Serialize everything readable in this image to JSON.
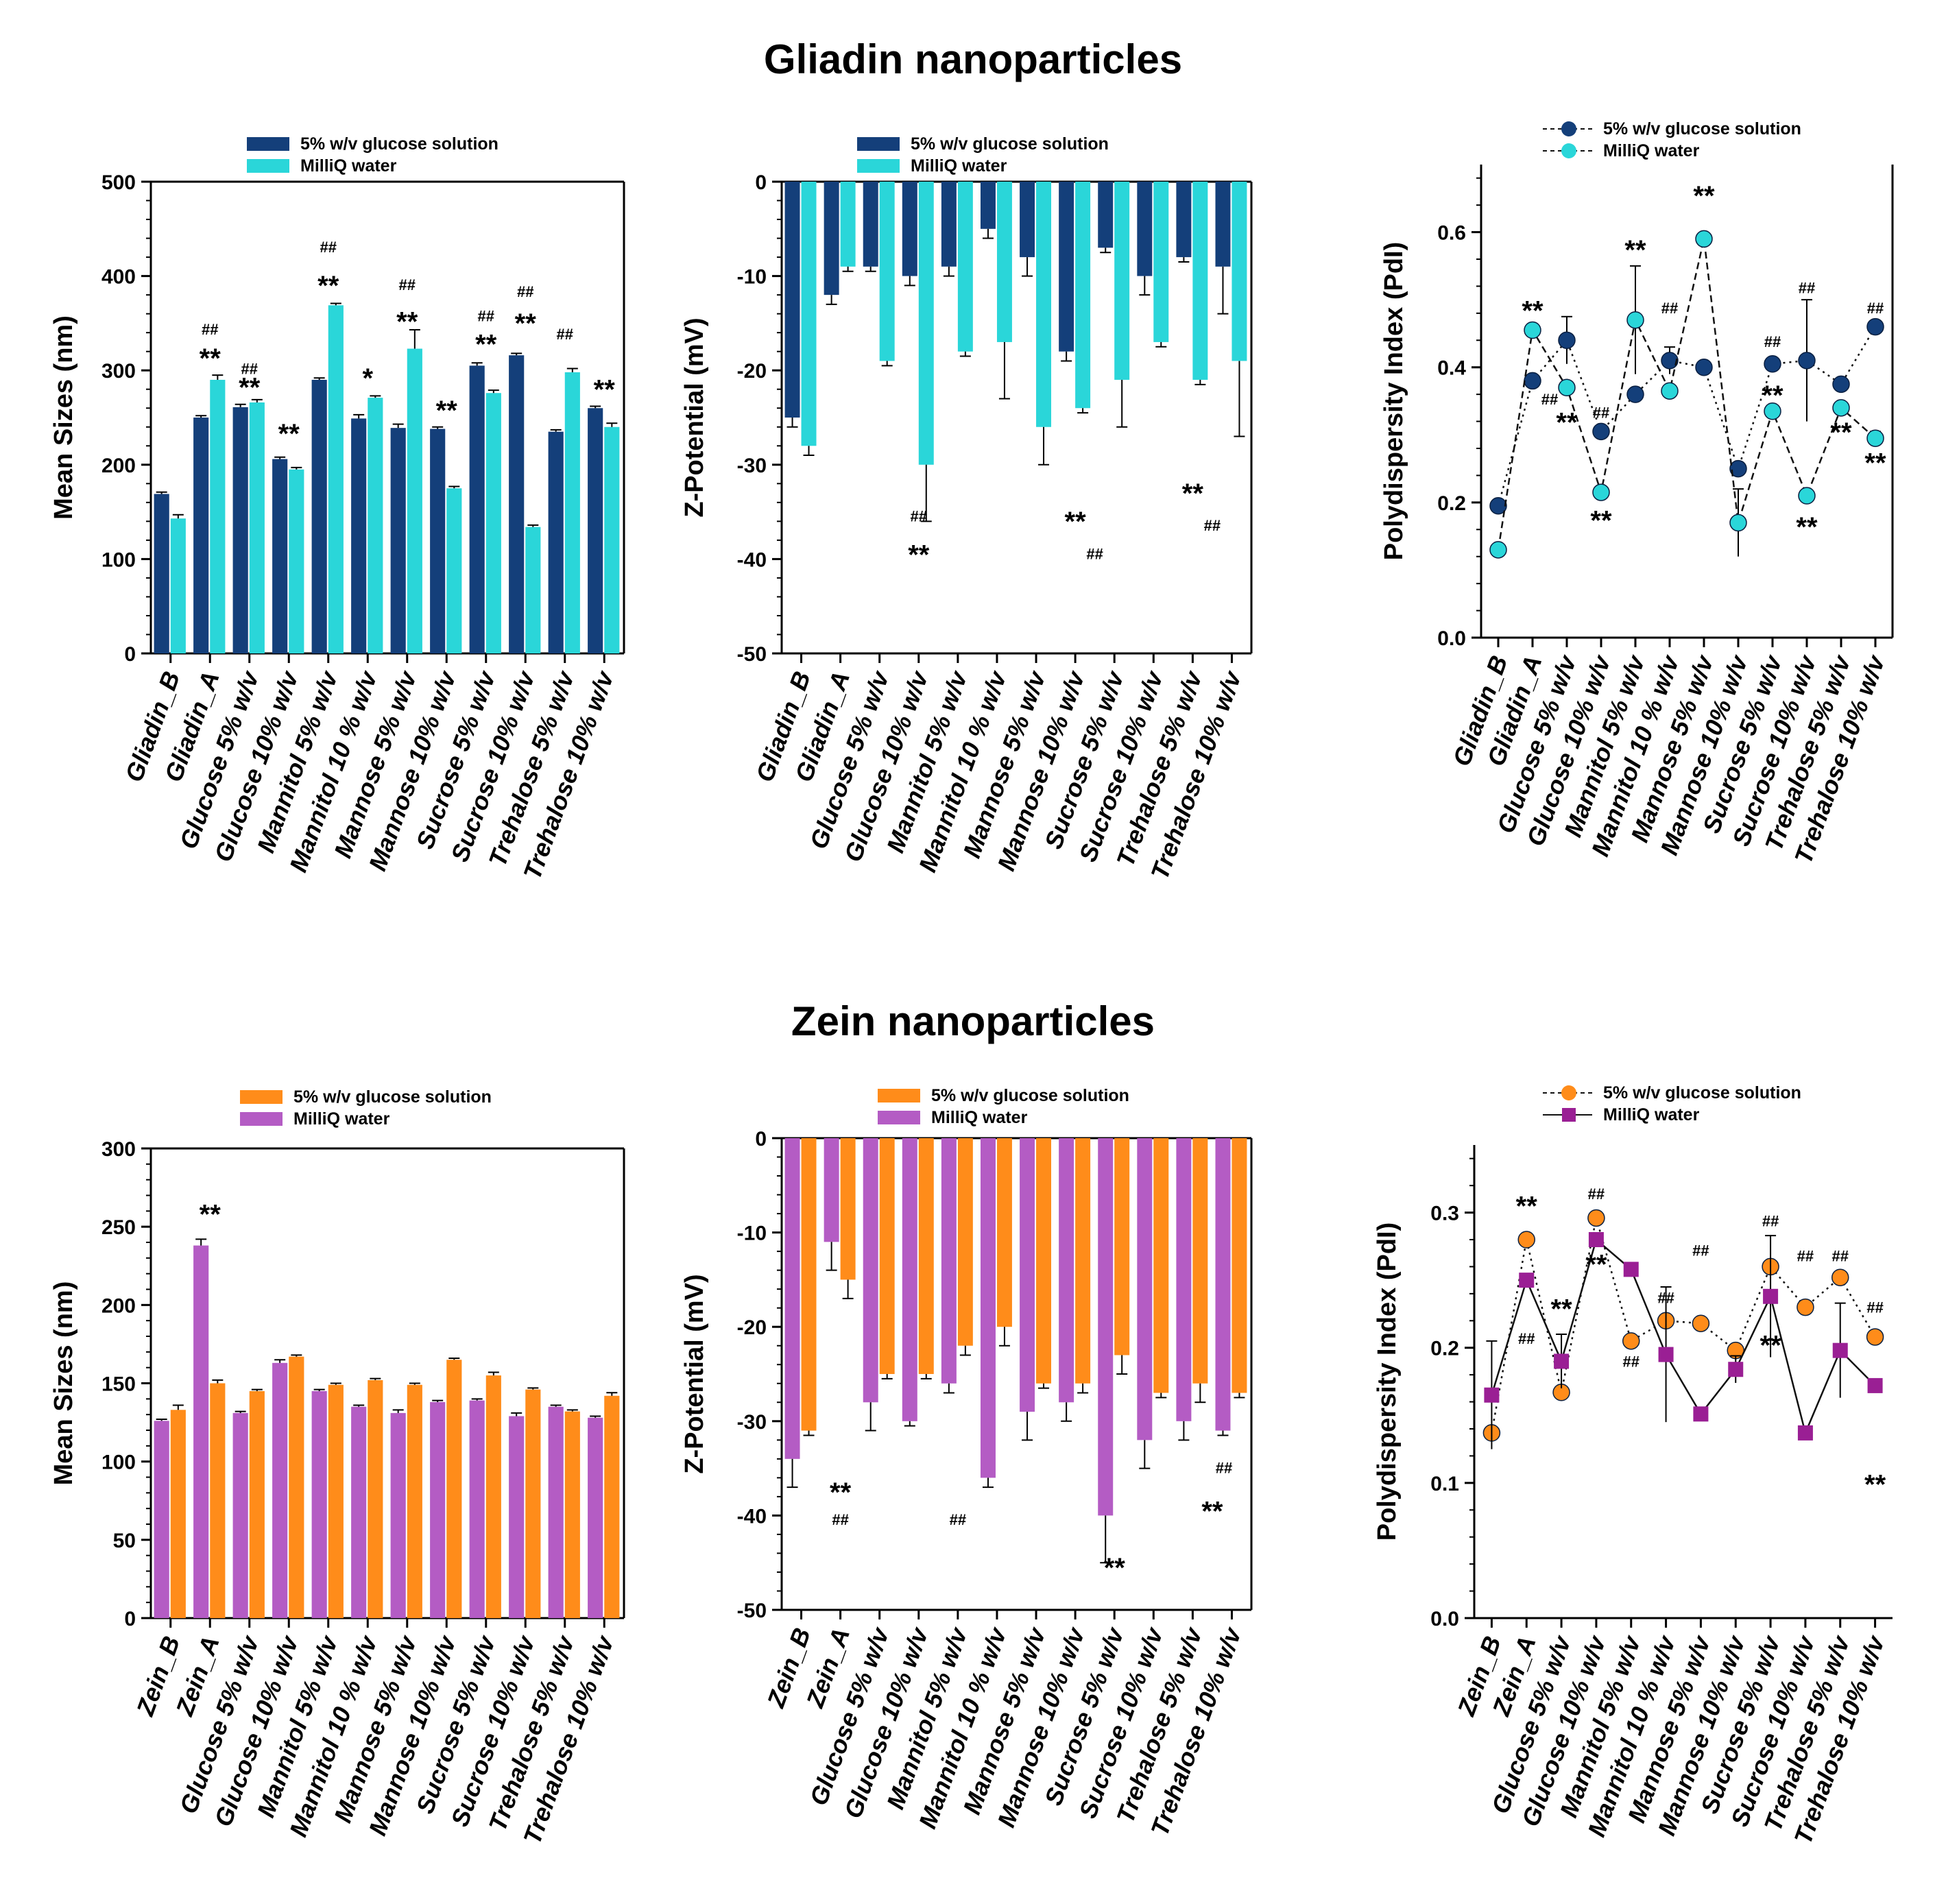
{
  "titles": {
    "top": "Gliadin nanoparticles",
    "bottom": "Zein nanoparticles"
  },
  "colors": {
    "glucose_blue": "#143f7a",
    "water_cyan": "#2ad6d9",
    "glucose_orange": "#ff8c1a",
    "water_purple": "#b45cc4",
    "purple_marker": "#9a1f94"
  },
  "chart_data": [
    {
      "id": "gliadin-size",
      "type": "bar",
      "ylabel": "Mean Sizes (nm)",
      "ylim": [
        0,
        500
      ],
      "yticks": [
        0,
        100,
        200,
        300,
        400,
        500
      ],
      "categories": [
        "Gliadin_B",
        "Gliadin_A",
        "Glucose 5% w/v",
        "Glucose 10% w/v",
        "Mannitol 5% w/v",
        "Mannitol 10 % w/v",
        "Mannose 5% w/v",
        "Mannose 10% w/v",
        "Sucrose 5% w/v",
        "Sucrose 10% w/v",
        "Trehalose 5% w/v",
        "Trehalose 10% w/v"
      ],
      "series": [
        {
          "name": "5% w/v glucose solution",
          "color": "#143f7a",
          "values": [
            169,
            250,
            261,
            206,
            290,
            249,
            239,
            238,
            305,
            316,
            235,
            260
          ],
          "errors": [
            2,
            2,
            3,
            2,
            2,
            4,
            4,
            2,
            3,
            2,
            2,
            2
          ]
        },
        {
          "name": "MilliQ water",
          "color": "#2ad6d9",
          "values": [
            143,
            290,
            266,
            195,
            369,
            271,
            323,
            175,
            276,
            134,
            298,
            240
          ],
          "errors": [
            4,
            5,
            3,
            2,
            2,
            2,
            20,
            2,
            3,
            2,
            4,
            4
          ]
        }
      ],
      "annotations": [
        {
          "cat": 1,
          "value": 303,
          "text": "**",
          "kind": "star"
        },
        {
          "cat": 1,
          "value": 338,
          "text": "##",
          "kind": "hash"
        },
        {
          "cat": 2,
          "value": 272,
          "text": "**",
          "kind": "star"
        },
        {
          "cat": 2,
          "value": 296,
          "text": "##",
          "kind": "hash"
        },
        {
          "cat": 3,
          "value": 223,
          "text": "**",
          "kind": "star"
        },
        {
          "cat": 4,
          "value": 380,
          "text": "**",
          "kind": "star"
        },
        {
          "cat": 4,
          "value": 425,
          "text": "##",
          "kind": "hash"
        },
        {
          "cat": 5,
          "value": 282,
          "text": "*",
          "kind": "star"
        },
        {
          "cat": 6,
          "value": 342,
          "text": "**",
          "kind": "star"
        },
        {
          "cat": 6,
          "value": 385,
          "text": "##",
          "kind": "hash"
        },
        {
          "cat": 7,
          "value": 248,
          "text": "**",
          "kind": "star"
        },
        {
          "cat": 8,
          "value": 318,
          "text": "**",
          "kind": "star"
        },
        {
          "cat": 8,
          "value": 352,
          "text": "##",
          "kind": "hash"
        },
        {
          "cat": 9,
          "value": 340,
          "text": "**",
          "kind": "star"
        },
        {
          "cat": 9,
          "value": 378,
          "text": "##",
          "kind": "hash"
        },
        {
          "cat": 10,
          "value": 333,
          "text": "##",
          "kind": "hash"
        },
        {
          "cat": 11,
          "value": 270,
          "text": "**",
          "kind": "star"
        }
      ]
    },
    {
      "id": "gliadin-zeta",
      "type": "bar",
      "ylabel": "Z-Potential (mV)",
      "ylim": [
        -50,
        0
      ],
      "yticks": [
        0,
        -10,
        -20,
        -30,
        -40,
        -50
      ],
      "categories": [
        "Gliadin_B",
        "Gliadin_A",
        "Glucose 5% w/v",
        "Glucose 10% w/v",
        "Mannitol 5% w/v",
        "Mannitol 10 % w/v",
        "Mannose 5% w/v",
        "Mannose 10% w/v",
        "Sucrose 5% w/v",
        "Sucrose 10% w/v",
        "Trehalose 5% w/v",
        "Trehalose 10% w/v"
      ],
      "series": [
        {
          "name": "5% w/v glucose solution",
          "color": "#143f7a",
          "values": [
            -25,
            -12,
            -9,
            -10,
            -9,
            -5,
            -8,
            -18,
            -7,
            -10,
            -8,
            -9
          ],
          "errors": [
            1,
            1,
            0.5,
            1,
            1,
            1,
            2,
            1,
            0.5,
            2,
            0.5,
            5
          ]
        },
        {
          "name": "MilliQ water",
          "color": "#2ad6d9",
          "values": [
            -28,
            -9,
            -19,
            -30,
            -18,
            -17,
            -26,
            -24,
            -21,
            -17,
            -21,
            -19
          ],
          "errors": [
            1,
            0.5,
            0.5,
            6,
            0.5,
            6,
            4,
            0.5,
            5,
            0.5,
            0.5,
            8
          ]
        }
      ],
      "annotations": [
        {
          "cat": 3,
          "value": -36,
          "text": "##",
          "kind": "hash"
        },
        {
          "cat": 3,
          "value": -40.5,
          "text": "**",
          "kind": "star"
        },
        {
          "cat": 7,
          "value": -37,
          "text": "**",
          "kind": "star"
        },
        {
          "cat": 7.5,
          "value": -40,
          "text": "##",
          "kind": "hash"
        },
        {
          "cat": 10,
          "value": -34,
          "text": "**",
          "kind": "star"
        },
        {
          "cat": 10.5,
          "value": -37,
          "text": "##",
          "kind": "hash"
        }
      ]
    },
    {
      "id": "gliadin-pdi",
      "type": "line",
      "ylabel": "Polydispersity Index (PdI)",
      "ylim": [
        0,
        0.7
      ],
      "yticks": [
        0.0,
        0.2,
        0.4,
        0.6
      ],
      "categories": [
        "Gliadin_B",
        "Gliadin_A",
        "Glucose 5% w/v",
        "Glucose 10% w/v",
        "Mannitol 5% w/v",
        "Mannitol 10 % w/v",
        "Mannose 5% w/v",
        "Mannose 10% w/v",
        "Sucrose 5% w/v",
        "Sucrose 10% w/v",
        "Trehalose 5% w/v",
        "Trehalose 10% w/v"
      ],
      "series": [
        {
          "name": "5% w/v glucose solution",
          "color": "#143f7a",
          "marker": "circle",
          "line": "dotted",
          "values": [
            0.195,
            0.38,
            0.44,
            0.305,
            0.36,
            0.41,
            0.4,
            0.25,
            0.405,
            0.41,
            0.375,
            0.46
          ],
          "errors": [
            0,
            0,
            0.035,
            0,
            0,
            0.02,
            0,
            0,
            0,
            0.09,
            0,
            0
          ]
        },
        {
          "name": "MilliQ water",
          "color": "#2ad6d9",
          "marker": "circle",
          "line": "dashed",
          "values": [
            0.13,
            0.455,
            0.37,
            0.215,
            0.47,
            0.365,
            0.59,
            0.17,
            0.335,
            0.21,
            0.34,
            0.295
          ],
          "errors": [
            0,
            0,
            0,
            0,
            0.08,
            0,
            0,
            0.05,
            0,
            0,
            0,
            0.01
          ]
        }
      ],
      "annotations": [
        {
          "cat": 1,
          "value": 0.47,
          "text": "**",
          "kind": "star"
        },
        {
          "cat": 1.5,
          "value": 0.345,
          "text": "##",
          "kind": "hash"
        },
        {
          "cat": 2,
          "value": 0.305,
          "text": "**",
          "kind": "star"
        },
        {
          "cat": 3,
          "value": 0.325,
          "text": "##",
          "kind": "hash"
        },
        {
          "cat": 3,
          "value": 0.16,
          "text": "**",
          "kind": "star"
        },
        {
          "cat": 4,
          "value": 0.56,
          "text": "**",
          "kind": "star"
        },
        {
          "cat": 5,
          "value": 0.48,
          "text": "##",
          "kind": "hash"
        },
        {
          "cat": 6,
          "value": 0.64,
          "text": "**",
          "kind": "star"
        },
        {
          "cat": 8,
          "value": 0.43,
          "text": "##",
          "kind": "hash"
        },
        {
          "cat": 8,
          "value": 0.345,
          "text": "**",
          "kind": "star"
        },
        {
          "cat": 9,
          "value": 0.51,
          "text": "##",
          "kind": "hash"
        },
        {
          "cat": 9,
          "value": 0.15,
          "text": "**",
          "kind": "star"
        },
        {
          "cat": 10,
          "value": 0.29,
          "text": "**",
          "kind": "star"
        },
        {
          "cat": 11,
          "value": 0.48,
          "text": "##",
          "kind": "hash"
        },
        {
          "cat": 11,
          "value": 0.245,
          "text": "**",
          "kind": "star"
        }
      ]
    },
    {
      "id": "zein-size",
      "type": "bar",
      "ylabel": "Mean Sizes (nm)",
      "ylim": [
        0,
        300
      ],
      "yticks": [
        0,
        50,
        100,
        150,
        200,
        250,
        300
      ],
      "categories": [
        "Zein_B",
        "Zein_A",
        "Glucose 5% w/v",
        "Glucose 10% w/v",
        "Mannitol 5% w/v",
        "Mannitol 10 % w/v",
        "Mannose 5% w/v",
        "Mannose 10% w/v",
        "Sucrose 5% w/v",
        "Sucrose 10% w/v",
        "Trehalose 5% w/v",
        "Trehalose 10% w/v"
      ],
      "series": [
        {
          "name": "MilliQ water",
          "color": "#b45cc4",
          "values": [
            126,
            238,
            131,
            163,
            145,
            135,
            131,
            138,
            139,
            129,
            135,
            128
          ],
          "errors": [
            1,
            4,
            1,
            2,
            1,
            1,
            2,
            1,
            1,
            2,
            1,
            1
          ]
        },
        {
          "name": "5% w/v glucose solution",
          "color": "#ff8c1a",
          "values": [
            133,
            150,
            145,
            167,
            149,
            152,
            149,
            165,
            155,
            146,
            132,
            142
          ],
          "errors": [
            3,
            2,
            1,
            1,
            1,
            1,
            1,
            1,
            2,
            1,
            1,
            2
          ]
        }
      ],
      "annotations": [
        {
          "cat": 1,
          "value": 252,
          "text": "**",
          "kind": "star"
        }
      ]
    },
    {
      "id": "zein-zeta",
      "type": "bar",
      "ylabel": "Z-Potential (mV)",
      "ylim": [
        -50,
        0
      ],
      "yticks": [
        0,
        -10,
        -20,
        -30,
        -40,
        -50
      ],
      "categories": [
        "Zein_B",
        "Zein_A",
        "Glucose 5% w/v",
        "Glucose 10% w/v",
        "Mannitol 5% w/v",
        "Mannitol 10 % w/v",
        "Mannose 5% w/v",
        "Mannose 10% w/v",
        "Sucrose 5% w/v",
        "Sucrose 10% w/v",
        "Trehalose 5% w/v",
        "Trehalose 10% w/v"
      ],
      "series": [
        {
          "name": "MilliQ water",
          "color": "#b45cc4",
          "values": [
            -34,
            -11,
            -28,
            -30,
            -26,
            -36,
            -29,
            -28,
            -40,
            -32,
            -30,
            -31
          ],
          "errors": [
            3,
            3,
            3,
            0.5,
            1,
            1,
            3,
            2,
            5,
            3,
            2,
            0.5
          ]
        },
        {
          "name": "5% w/v glucose solution",
          "color": "#ff8c1a",
          "values": [
            -31,
            -15,
            -25,
            -25,
            -22,
            -20,
            -26,
            -26,
            -23,
            -27,
            -26,
            -27
          ],
          "errors": [
            0.5,
            2,
            0.5,
            0.5,
            1,
            2,
            0.5,
            1,
            2,
            0.5,
            2,
            0.5
          ]
        }
      ],
      "annotations": [
        {
          "cat": 1,
          "value": -38.5,
          "text": "**",
          "kind": "star"
        },
        {
          "cat": 1,
          "value": -41,
          "text": "##",
          "kind": "hash"
        },
        {
          "cat": 4,
          "value": -41,
          "text": "##",
          "kind": "hash"
        },
        {
          "cat": 8,
          "value": -46.5,
          "text": "**",
          "kind": "star"
        },
        {
          "cat": 10.5,
          "value": -40.5,
          "text": "**",
          "kind": "star"
        },
        {
          "cat": 10.8,
          "value": -35.5,
          "text": "##",
          "kind": "hash"
        }
      ]
    },
    {
      "id": "zein-pdi",
      "type": "line",
      "ylabel": "Polydispersity Index (PdI)",
      "ylim": [
        0,
        0.35
      ],
      "yticks": [
        0.0,
        0.1,
        0.2,
        0.3
      ],
      "categories": [
        "Zein_B",
        "Zein_A",
        "Glucose 5% w/v",
        "Glucose 10% w/v",
        "Mannitol 5% w/v",
        "Mannitol 10 % w/v",
        "Mannose 5% w/v",
        "Mannose 10% w/v",
        "Sucrose 5% w/v",
        "Sucrose 10% w/v",
        "Trehalose 5% w/v",
        "Trehalose 10% w/v"
      ],
      "series": [
        {
          "name": "5% w/v glucose solution",
          "color": "#ff8c1a",
          "marker": "circle",
          "line": "dotted",
          "values": [
            0.137,
            0.28,
            0.167,
            0.296,
            0.205,
            0.22,
            0.218,
            0.198,
            0.26,
            0.23,
            0.252,
            0.208
          ],
          "errors": [
            0,
            0,
            0,
            0,
            0,
            0,
            0,
            0,
            0,
            0,
            0,
            0
          ]
        },
        {
          "name": "MilliQ water",
          "color": "#9a1f94",
          "marker": "square",
          "line": "solid",
          "values": [
            0.165,
            0.25,
            0.19,
            0.28,
            0.258,
            0.195,
            0.151,
            0.184,
            0.238,
            0.137,
            0.198,
            0.172
          ],
          "errors": [
            0.04,
            0,
            0.02,
            0,
            0,
            0.05,
            0,
            0.01,
            0.045,
            0,
            0.035,
            0
          ]
        }
      ],
      "annotations": [
        {
          "cat": 1,
          "value": 0.298,
          "text": "**",
          "kind": "star"
        },
        {
          "cat": 1,
          "value": 0.203,
          "text": "##",
          "kind": "hash"
        },
        {
          "cat": 2,
          "value": 0.222,
          "text": "**",
          "kind": "star"
        },
        {
          "cat": 3,
          "value": 0.31,
          "text": "##",
          "kind": "hash"
        },
        {
          "cat": 3,
          "value": 0.255,
          "text": "**",
          "kind": "star"
        },
        {
          "cat": 4,
          "value": 0.186,
          "text": "##",
          "kind": "hash"
        },
        {
          "cat": 5,
          "value": 0.233,
          "text": "##",
          "kind": "hash"
        },
        {
          "cat": 6,
          "value": 0.268,
          "text": "##",
          "kind": "hash"
        },
        {
          "cat": 8,
          "value": 0.29,
          "text": "##",
          "kind": "hash"
        },
        {
          "cat": 8,
          "value": 0.195,
          "text": "**",
          "kind": "star"
        },
        {
          "cat": 9,
          "value": 0.264,
          "text": "##",
          "kind": "hash"
        },
        {
          "cat": 10,
          "value": 0.264,
          "text": "##",
          "kind": "hash"
        },
        {
          "cat": 11,
          "value": 0.226,
          "text": "##",
          "kind": "hash"
        },
        {
          "cat": 11,
          "value": 0.092,
          "text": "**",
          "kind": "star"
        }
      ]
    }
  ]
}
